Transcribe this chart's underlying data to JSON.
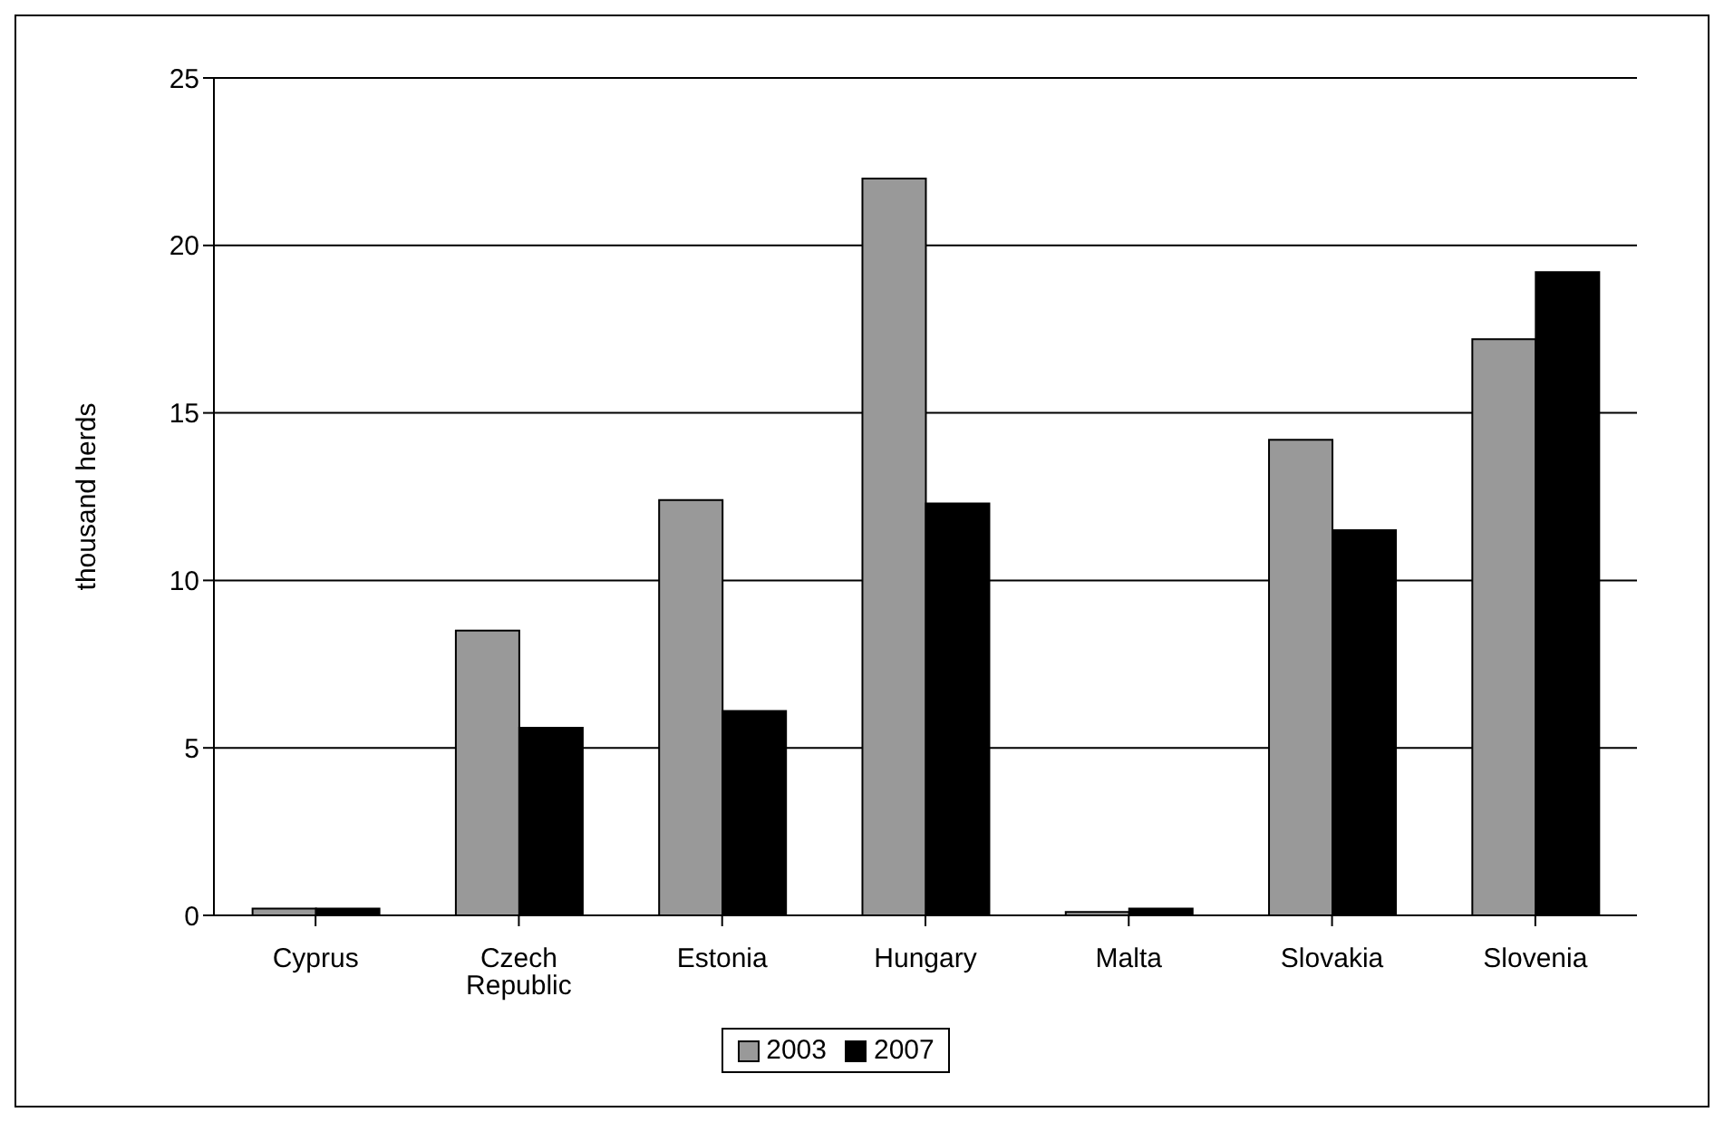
{
  "chart_data": {
    "type": "bar",
    "ylabel": "thousand herds",
    "categories": [
      "Cyprus",
      "Czech Republic",
      "Estonia",
      "Hungary",
      "Malta",
      "Slovakia",
      "Slovenia"
    ],
    "series": [
      {
        "name": "2003",
        "color": "#999999",
        "values": [
          0.2,
          8.5,
          12.4,
          22.0,
          0.1,
          14.2,
          17.2
        ]
      },
      {
        "name": "2007",
        "color": "#000000",
        "values": [
          0.2,
          5.6,
          6.1,
          12.3,
          0.2,
          11.5,
          19.2
        ]
      }
    ],
    "ylim": [
      0,
      25
    ],
    "yticks": [
      0,
      5,
      10,
      15,
      20,
      25
    ],
    "grid": "y",
    "legend": "bottom"
  }
}
